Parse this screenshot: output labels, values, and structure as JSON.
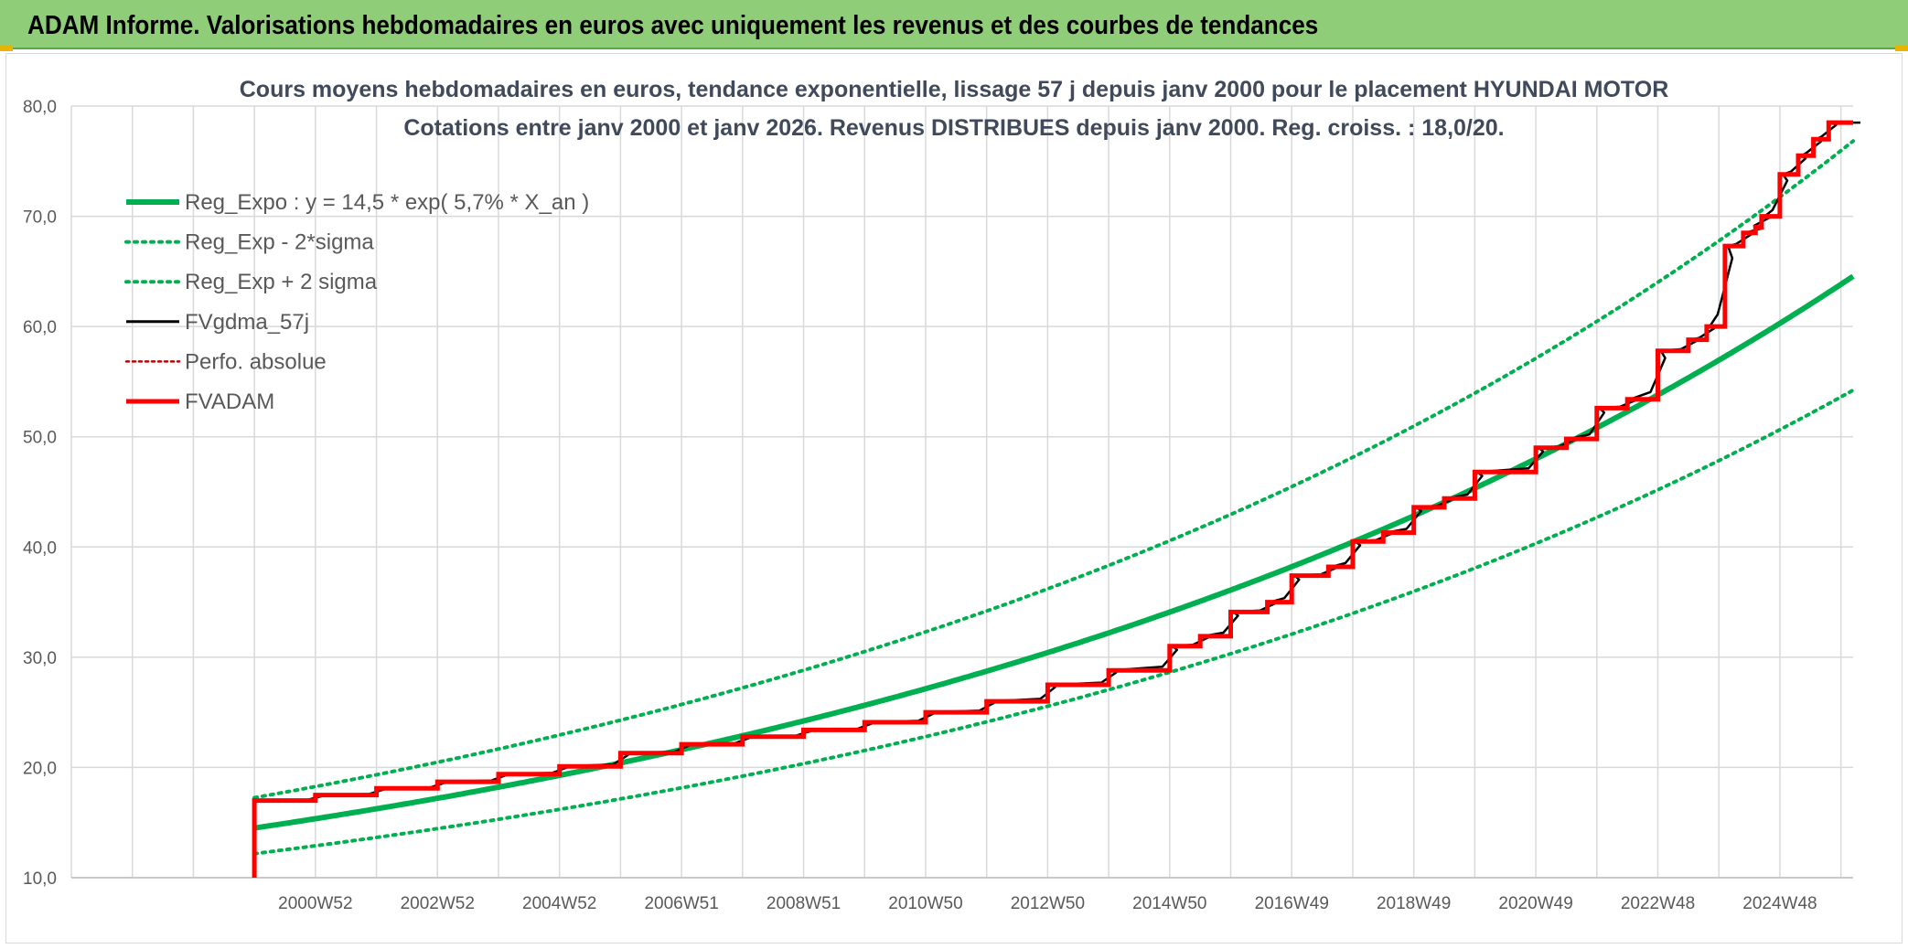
{
  "report": {
    "title": "ADAM Informe. Valorisations hebdomadaires en euros avec uniquement les revenus et des courbes de tendances"
  },
  "colors": {
    "header_band": "#8fcd79",
    "reg_expo": "#00b050",
    "fvadam": "#ff0000",
    "fvgdma": "#000000",
    "perfo": "#c00000",
    "grid": "#d9d9d9"
  },
  "chart_data": {
    "type": "line",
    "title_line1": "Cours moyens hebdomadaires en euros, tendance exponentielle, lissage 57 j depuis janv 2000 pour le placement HYUNDAI MOTOR",
    "title_line2": "Cotations entre janv 2000 et janv 2026. Revenus DISTRIBUES depuis janv 2000. Reg. croiss. : 18,0/20.",
    "y_axis": {
      "min": 10,
      "max": 80,
      "step": 10,
      "tick_labels": [
        "10,0",
        "20,0",
        "30,0",
        "40,0",
        "50,0",
        "60,0",
        "70,0",
        "80,0"
      ]
    },
    "x_axis": {
      "range": [
        1997.0,
        2026.2
      ],
      "category_step_years": 1.0,
      "tick_labels": [
        {
          "year": 2001.0,
          "label": "2000W52"
        },
        {
          "year": 2003.0,
          "label": "2002W52"
        },
        {
          "year": 2005.0,
          "label": "2004W52"
        },
        {
          "year": 2007.0,
          "label": "2006W51"
        },
        {
          "year": 2009.0,
          "label": "2008W51"
        },
        {
          "year": 2011.0,
          "label": "2010W50"
        },
        {
          "year": 2013.0,
          "label": "2012W50"
        },
        {
          "year": 2015.0,
          "label": "2014W50"
        },
        {
          "year": 2017.0,
          "label": "2016W49"
        },
        {
          "year": 2019.0,
          "label": "2018W49"
        },
        {
          "year": 2021.0,
          "label": "2020W49"
        },
        {
          "year": 2023.0,
          "label": "2022W48"
        },
        {
          "year": 2025.0,
          "label": "2024W48"
        }
      ]
    },
    "legend": {
      "position": "top-left",
      "entries": [
        {
          "key": "reg_expo",
          "label": "Reg_Expo : y = 14,5 * exp( 5,7% *  X_an )"
        },
        {
          "key": "reg_minus",
          "label": "Reg_Exp - 2*sigma"
        },
        {
          "key": "reg_plus",
          "label": "Reg_Exp + 2 sigma"
        },
        {
          "key": "fvgdma",
          "label": "FVgdma_57j"
        },
        {
          "key": "perfo",
          "label": "Perfo. absolue"
        },
        {
          "key": "fvadam",
          "label": "FVADAM"
        }
      ]
    },
    "regression": {
      "start_year": 2000.0,
      "end_year": 2026.2,
      "a": 14.5,
      "rate": 0.057,
      "band_low_factor": 0.84,
      "band_high_factor": 1.19
    },
    "fvadam_steps": [
      {
        "year": 2000.0,
        "value": 10.0
      },
      {
        "year": 2000.0,
        "value": 17.0
      },
      {
        "year": 2001.0,
        "value": 17.5
      },
      {
        "year": 2002.0,
        "value": 18.1
      },
      {
        "year": 2003.0,
        "value": 18.7
      },
      {
        "year": 2004.0,
        "value": 19.4
      },
      {
        "year": 2005.0,
        "value": 20.1
      },
      {
        "year": 2006.0,
        "value": 21.3
      },
      {
        "year": 2007.0,
        "value": 22.1
      },
      {
        "year": 2008.0,
        "value": 22.8
      },
      {
        "year": 2009.0,
        "value": 23.4
      },
      {
        "year": 2010.0,
        "value": 24.1
      },
      {
        "year": 2011.0,
        "value": 25.0
      },
      {
        "year": 2012.0,
        "value": 26.0
      },
      {
        "year": 2013.0,
        "value": 27.5
      },
      {
        "year": 2014.0,
        "value": 28.8
      },
      {
        "year": 2015.0,
        "value": 31.0
      },
      {
        "year": 2015.5,
        "value": 31.9
      },
      {
        "year": 2016.0,
        "value": 34.1
      },
      {
        "year": 2016.6,
        "value": 35.0
      },
      {
        "year": 2017.0,
        "value": 37.4
      },
      {
        "year": 2017.6,
        "value": 38.2
      },
      {
        "year": 2018.0,
        "value": 40.5
      },
      {
        "year": 2018.5,
        "value": 41.3
      },
      {
        "year": 2019.0,
        "value": 43.6
      },
      {
        "year": 2019.5,
        "value": 44.4
      },
      {
        "year": 2020.0,
        "value": 46.8
      },
      {
        "year": 2021.0,
        "value": 49.0
      },
      {
        "year": 2021.5,
        "value": 49.8
      },
      {
        "year": 2022.0,
        "value": 52.6
      },
      {
        "year": 2022.5,
        "value": 53.4
      },
      {
        "year": 2023.0,
        "value": 57.8
      },
      {
        "year": 2023.5,
        "value": 58.8
      },
      {
        "year": 2023.8,
        "value": 60.0
      },
      {
        "year": 2024.1,
        "value": 67.3
      },
      {
        "year": 2024.4,
        "value": 68.5
      },
      {
        "year": 2024.6,
        "value": 69.0
      },
      {
        "year": 2024.7,
        "value": 70.0
      },
      {
        "year": 2025.0,
        "value": 73.8
      },
      {
        "year": 2025.3,
        "value": 75.5
      },
      {
        "year": 2025.55,
        "value": 77.0
      },
      {
        "year": 2025.8,
        "value": 78.5
      },
      {
        "year": 2026.2,
        "value": 78.5
      }
    ]
  }
}
